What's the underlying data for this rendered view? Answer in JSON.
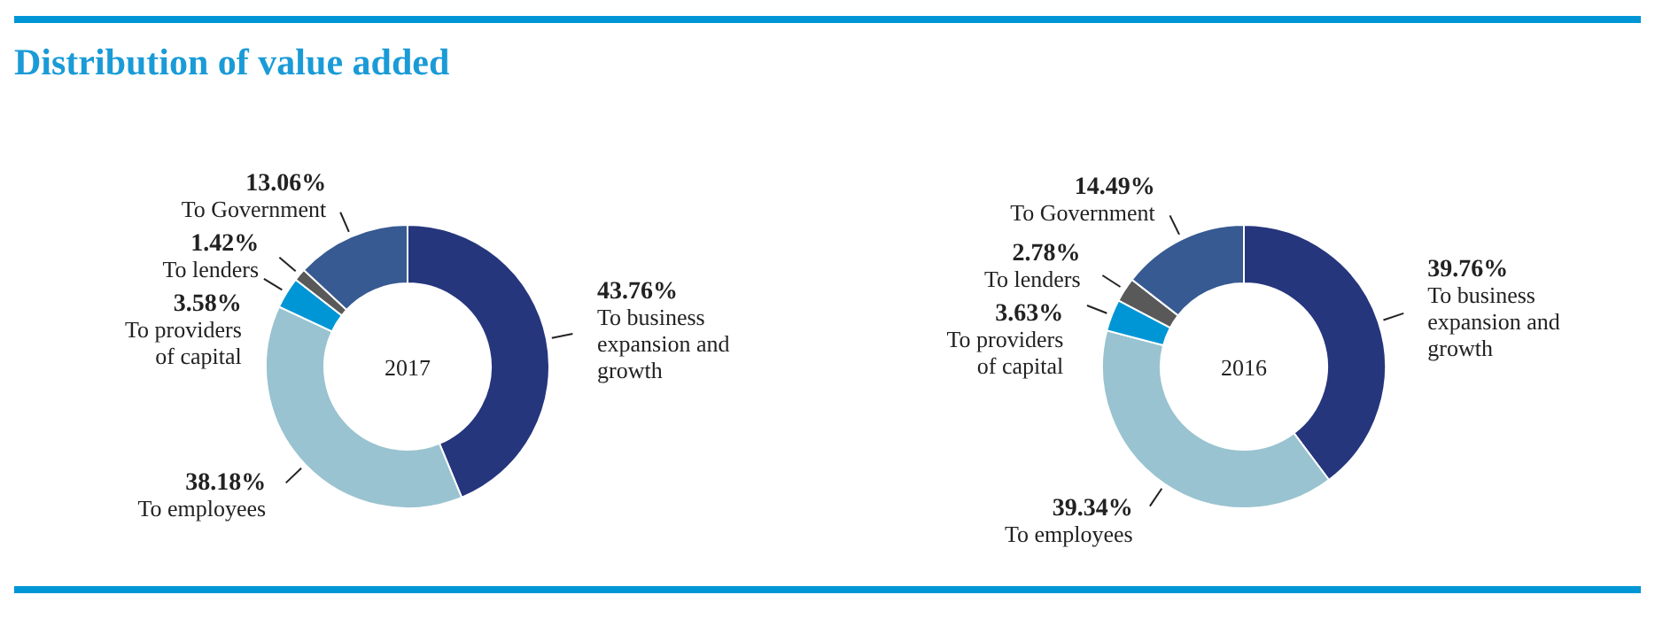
{
  "chart_data": [
    {
      "type": "donut",
      "title": "Distribution of value added",
      "subtitle": "2017",
      "categories": [
        "To business expansion and growth",
        "To employees",
        "To providers of capital",
        "To lenders",
        "To Government"
      ],
      "values": [
        43.76,
        38.18,
        3.58,
        1.42,
        13.06
      ],
      "colors": [
        "#26367d",
        "#99c3d0",
        "#0096d6",
        "#595959",
        "#365a91"
      ],
      "value_labels": [
        "43.76%",
        "38.18%",
        "3.58%",
        "1.42%",
        "13.06%"
      ]
    },
    {
      "type": "donut",
      "subtitle": "2016",
      "categories": [
        "To business expansion and growth",
        "To employees",
        "To providers of capital",
        "To lenders",
        "To Government"
      ],
      "values": [
        39.76,
        39.34,
        3.63,
        2.78,
        14.49
      ],
      "colors": [
        "#26367d",
        "#99c3d0",
        "#0096d6",
        "#595959",
        "#365a91"
      ],
      "value_labels": [
        "39.76%",
        "39.34%",
        "3.63%",
        "2.78%",
        "14.49%"
      ]
    }
  ]
}
